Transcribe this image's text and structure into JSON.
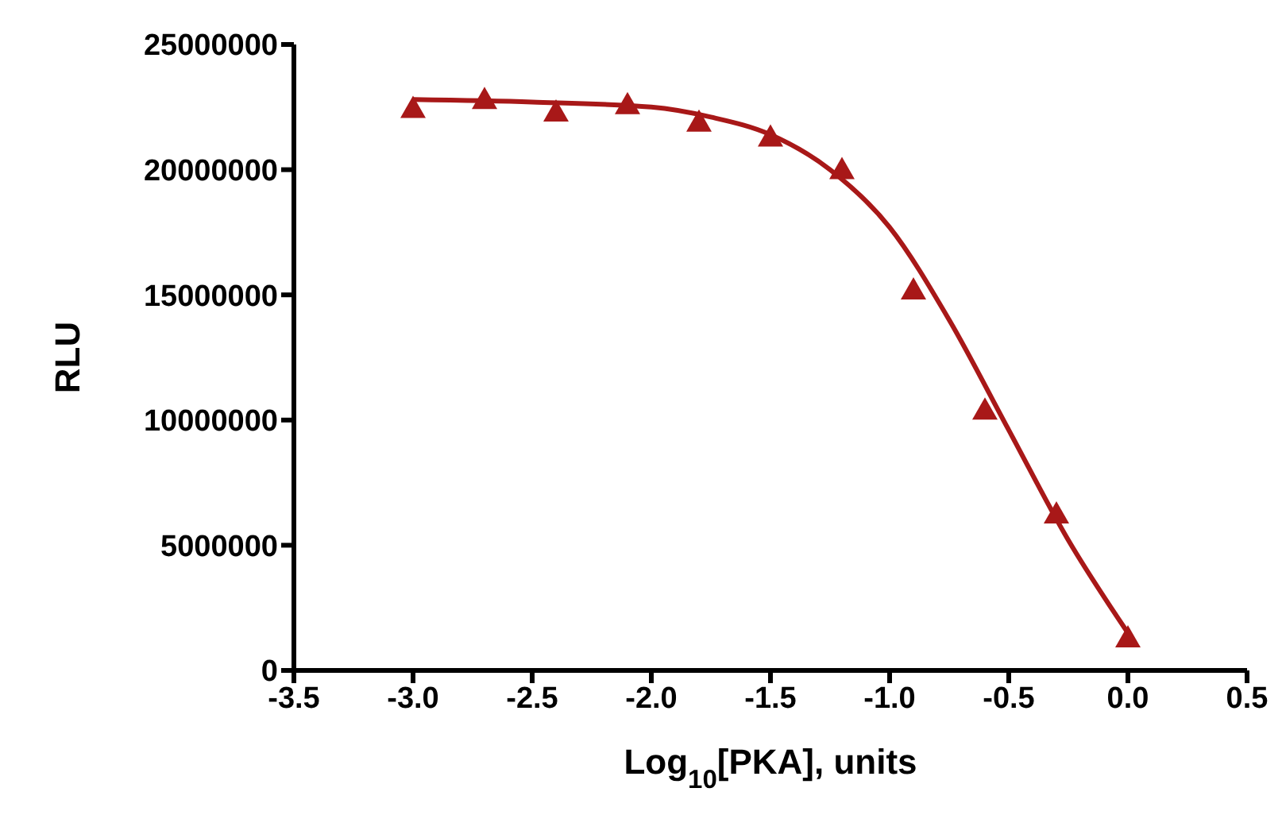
{
  "chart_data": {
    "type": "scatter",
    "xlabel": "Log$_{10}$[PKA], units",
    "ylabel": "RLU",
    "xlim": [
      -3.5,
      0.5
    ],
    "xticks": [
      {
        "value": -3.5,
        "label": "-3.5"
      },
      {
        "value": -3,
        "label": "-3.0"
      },
      {
        "value": -2.5,
        "label": "-2.5"
      },
      {
        "value": -2,
        "label": "-2.0"
      },
      {
        "value": -1.5,
        "label": "-1.5"
      },
      {
        "value": -1,
        "label": "-1.0"
      },
      {
        "value": -0.5,
        "label": "-0.5"
      },
      {
        "value": 0,
        "label": "0.0"
      },
      {
        "value": 0.5,
        "label": "0.5"
      }
    ],
    "ylim": [
      0,
      25000000
    ],
    "yticks": [
      0,
      5000000,
      10000000,
      15000000,
      20000000,
      25000000
    ],
    "series": [
      {
        "marker": "triangle",
        "color": "#a81818",
        "x": [
          -3.0,
          -2.7,
          -2.4,
          -2.1,
          -1.8,
          -1.5,
          -1.2,
          -0.9,
          -0.6,
          -0.3,
          0.0
        ],
        "values": [
          22450000,
          22800000,
          22300000,
          22600000,
          21900000,
          21300000,
          20000000,
          15200000,
          10400000,
          6250000,
          1300000
        ]
      },
      {
        "type": "line",
        "marker": "none",
        "line_style": "solid",
        "color": "#a81818",
        "x": [
          -3.0,
          -2.5,
          -2.0,
          -1.75,
          -1.5,
          -1.25,
          -1.0,
          -0.75,
          -0.5,
          -0.25,
          0.0
        ],
        "values": [
          22800000,
          22700000,
          22500000,
          22100000,
          21400000,
          20000000,
          17700000,
          14000000,
          9600000,
          5200000,
          1500000
        ]
      }
    ]
  }
}
